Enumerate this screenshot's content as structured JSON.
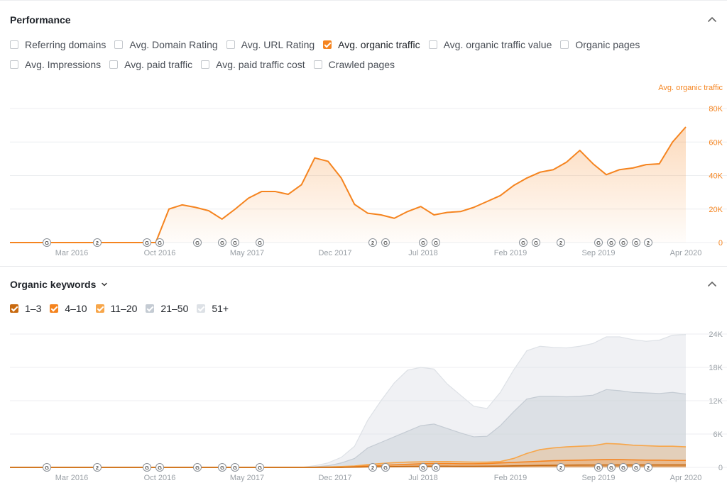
{
  "performance": {
    "title": "Performance",
    "metrics_row1": [
      {
        "label": "Referring domains",
        "checked": false
      },
      {
        "label": "Avg. Domain Rating",
        "checked": false
      },
      {
        "label": "Avg. URL Rating",
        "checked": false
      },
      {
        "label": "Avg. organic traffic",
        "checked": true,
        "color": "#f5841f"
      },
      {
        "label": "Avg. organic traffic value",
        "checked": false
      },
      {
        "label": "Organic pages",
        "checked": false
      }
    ],
    "metrics_row2": [
      {
        "label": "Avg. Impressions",
        "checked": false
      },
      {
        "label": "Avg. paid traffic",
        "checked": false
      },
      {
        "label": "Avg. paid traffic cost",
        "checked": false
      },
      {
        "label": "Crawled pages",
        "checked": false
      }
    ]
  },
  "keywords": {
    "title": "Organic keywords",
    "dropdown_icon": "chevron-down-icon",
    "ranges": [
      {
        "label": "1–3",
        "color": "#c86a10"
      },
      {
        "label": "4–10",
        "color": "#f5841f"
      },
      {
        "label": "11–20",
        "color": "#f7a64a"
      },
      {
        "label": "21–50",
        "color": "#c4cbd3"
      },
      {
        "label": "51+",
        "color": "#dde1e6"
      }
    ]
  },
  "colors": {
    "accent": "#f5841f",
    "axis_text": "#9aa0a6",
    "grid": "#eceef0"
  },
  "chart_data": [
    {
      "type": "area",
      "series_name": "Avg. organic traffic",
      "x_labels": [
        "Mar 2016",
        "Oct 2016",
        "May 2017",
        "Dec 2017",
        "Jul 2018",
        "Feb 2019",
        "Sep 2019",
        "Apr 2020"
      ],
      "ylim": [
        0,
        80000
      ],
      "y_ticks": [
        "0",
        "20K",
        "40K",
        "60K",
        "80K"
      ],
      "series": [
        {
          "name": "Avg. organic traffic",
          "values": [
            0,
            0,
            0,
            0,
            0,
            0,
            0,
            0,
            0,
            0,
            0,
            0,
            20000,
            22500,
            21000,
            19000,
            14000,
            20000,
            26500,
            30500,
            30500,
            28800,
            34500,
            50500,
            48500,
            38500,
            22800,
            17500,
            16500,
            14500,
            18500,
            21500,
            16500,
            18000,
            18500,
            21000,
            24500,
            28000,
            34000,
            38500,
            42000,
            43500,
            48000,
            55000,
            47000,
            40500,
            43500,
            44500,
            46500,
            47000,
            60000,
            69000
          ]
        }
      ],
      "annotations": [
        "G",
        "2",
        "G",
        "G",
        "G",
        "G",
        "G",
        "G",
        "2",
        "G",
        "G",
        "G",
        "G",
        "G",
        "2",
        "G",
        "G",
        "G",
        "G",
        "2"
      ]
    },
    {
      "type": "area",
      "series_name": "Organic keywords",
      "x_labels": [
        "Mar 2016",
        "Oct 2016",
        "May 2017",
        "Dec 2017",
        "Jul 2018",
        "Feb 2019",
        "Sep 2019",
        "Apr 2020"
      ],
      "ylim": [
        0,
        24000
      ],
      "y_ticks": [
        "0",
        "6K",
        "12K",
        "18K",
        "24K"
      ],
      "series": [
        {
          "name": "1–3",
          "values": [
            0,
            0,
            0,
            0,
            0,
            0,
            0,
            0,
            0,
            0,
            0,
            0,
            0,
            0,
            0,
            0,
            0,
            0,
            0,
            0,
            0,
            0,
            0,
            0,
            0,
            0,
            40,
            80,
            110,
            150,
            180,
            200,
            210,
            210,
            200,
            200,
            210,
            230,
            280,
            320,
            360,
            380,
            400,
            420,
            430,
            430,
            440,
            440,
            440,
            440,
            440,
            440
          ]
        },
        {
          "name": "4–10",
          "values": [
            0,
            0,
            0,
            0,
            0,
            0,
            0,
            0,
            0,
            0,
            0,
            0,
            0,
            0,
            0,
            0,
            0,
            0,
            0,
            0,
            0,
            0,
            0,
            0,
            0,
            0,
            120,
            250,
            350,
            450,
            550,
            650,
            700,
            700,
            650,
            650,
            700,
            800,
            900,
            1000,
            1100,
            1200,
            1250,
            1300,
            1350,
            1400,
            1400,
            1350,
            1300,
            1300,
            1250,
            1250
          ]
        },
        {
          "name": "11–20",
          "values": [
            0,
            0,
            0,
            0,
            0,
            0,
            0,
            0,
            0,
            0,
            0,
            0,
            0,
            0,
            0,
            0,
            0,
            0,
            0,
            0,
            0,
            0,
            0,
            30,
            80,
            150,
            250,
            500,
            700,
            850,
            950,
            1000,
            1050,
            1050,
            1000,
            950,
            950,
            1050,
            1600,
            2500,
            3200,
            3500,
            3700,
            3800,
            3900,
            4300,
            4200,
            4000,
            3900,
            3800,
            3800,
            3700
          ]
        },
        {
          "name": "21–50",
          "values": [
            0,
            0,
            0,
            0,
            0,
            0,
            0,
            0,
            0,
            0,
            0,
            0,
            0,
            0,
            0,
            0,
            0,
            0,
            0,
            0,
            0,
            0,
            0,
            100,
            300,
            800,
            1600,
            3500,
            4500,
            5500,
            6500,
            7500,
            7800,
            7000,
            6200,
            5500,
            5600,
            7500,
            10000,
            12300,
            12800,
            12800,
            12700,
            12800,
            13000,
            14000,
            13800,
            13500,
            13400,
            13300,
            13500,
            13200
          ]
        },
        {
          "name": "51+",
          "values": [
            0,
            0,
            0,
            0,
            0,
            0,
            0,
            0,
            0,
            0,
            0,
            0,
            0,
            0,
            0,
            0,
            0,
            0,
            0,
            0,
            0,
            0,
            0,
            300,
            800,
            1800,
            3800,
            8500,
            12000,
            15200,
            17500,
            18000,
            17700,
            15000,
            13000,
            11000,
            10600,
            13500,
            17500,
            21000,
            21800,
            21600,
            21500,
            21800,
            22300,
            23500,
            23500,
            23000,
            22700,
            22900,
            23800,
            23900
          ]
        }
      ],
      "annotations": [
        "G",
        "2",
        "G",
        "G",
        "G",
        "G",
        "G",
        "G",
        "2",
        "G",
        "G",
        "G",
        "2",
        "G",
        "G",
        "G",
        "G",
        "2"
      ]
    }
  ]
}
